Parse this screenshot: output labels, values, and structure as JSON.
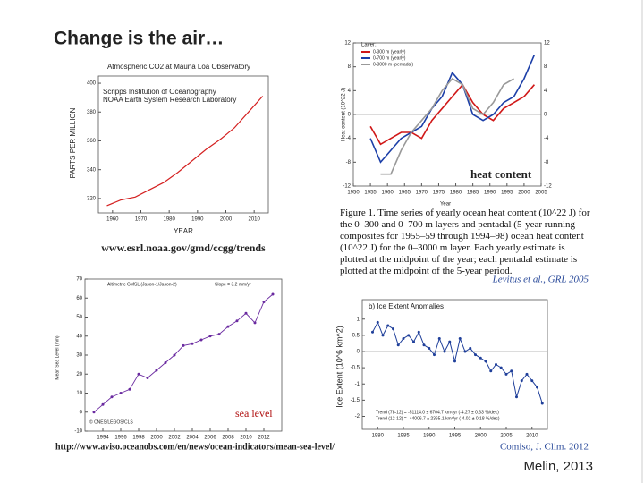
{
  "slide": {
    "title": "Change is the air…",
    "footer": "Melin, 2013"
  },
  "chart_data": [
    {
      "type": "line",
      "title": "Atmospheric CO2 at Mauna Loa Observatory",
      "subtitle": [
        "Scripps Institution of Oceanography",
        "NOAA Earth System Research Laboratory"
      ],
      "y_label": "PARTS PER MILLION",
      "x_label": "YEAR",
      "source": "www.esrl.noaa.gov/gmd/ccgg/trends",
      "x": [
        1958,
        1963,
        1968,
        1973,
        1978,
        1983,
        1988,
        1993,
        1998,
        2003,
        2008,
        2013
      ],
      "series": [
        {
          "name": "CO2",
          "color": "#d42020",
          "values": [
            315,
            319,
            321,
            326,
            331,
            338,
            346,
            354,
            361,
            369,
            380,
            391
          ]
        }
      ],
      "xlim": [
        1955,
        2015
      ],
      "xticks": [
        1960,
        1970,
        1980,
        1990,
        2000,
        2010
      ],
      "ylim": [
        310,
        405
      ],
      "yticks": [
        320,
        340,
        360,
        380,
        400
      ]
    },
    {
      "type": "line",
      "y_label": "Heat content (10^22 J)",
      "x_label": "Year",
      "legend_title": "Layer:",
      "annotation": "heat content",
      "caption": "Figure 1. Time series of yearly ocean heat content (10^22 J) for the 0–300 and 0–700 m layers and pentadal (5-year running composites for 1955–59 through 1994–98) ocean heat content (10^22 J) for the 0–3000 m layer. Each yearly estimate is plotted at the midpoint of the year; each pentadal estimate is plotted at the midpoint of the 5-year period.",
      "citation": "Levitus et al., GRL 2005",
      "x": [
        1955,
        1958,
        1961,
        1964,
        1967,
        1970,
        1973,
        1976,
        1979,
        1982,
        1985,
        1988,
        1991,
        1994,
        1997,
        2000,
        2003
      ],
      "series": [
        {
          "name": "0-300 m (yearly)",
          "color": "#d01818",
          "values": [
            -2,
            -5,
            -4,
            -3,
            -3,
            -4,
            -1,
            1,
            3,
            5,
            2,
            0,
            -1,
            1,
            2,
            3,
            5
          ]
        },
        {
          "name": "0-700 m (yearly)",
          "color": "#1c3fa8",
          "values": [
            -4,
            -8,
            -6,
            -4,
            -3,
            -2,
            1,
            3,
            7,
            5,
            0,
            -1,
            0,
            2,
            3,
            6,
            10
          ]
        },
        {
          "name": "0-3000 m (pentadal)",
          "color": "#999999",
          "values": [
            null,
            -10,
            -10,
            -6,
            -3,
            -1,
            1,
            4,
            6,
            5,
            1,
            0,
            2,
            5,
            6,
            null,
            null
          ]
        }
      ],
      "xlim": [
        1950,
        2005
      ],
      "xticks": [
        1950,
        1955,
        1960,
        1965,
        1970,
        1975,
        1980,
        1985,
        1990,
        1995,
        2000,
        2005
      ],
      "ylim": [
        -12,
        12
      ],
      "yticks": [
        -12,
        -8,
        -4,
        0,
        4,
        8,
        12
      ]
    },
    {
      "type": "line",
      "title": "Altimetric GMSL (Jason-1/Jason-2)",
      "subtitle": [
        "Slope = 3.2 mm/yr"
      ],
      "y_label": "Mean Sea Level (mm)",
      "annotation": "sea level",
      "credit": "© CNES/LEGOS/CLS",
      "source": "http://www.aviso.oceanobs.com/en/news/ocean-indicators/mean-sea-level/",
      "x": [
        1993,
        1994,
        1995,
        1996,
        1997,
        1998,
        1999,
        2000,
        2001,
        2002,
        2003,
        2004,
        2005,
        2006,
        2007,
        2008,
        2009,
        2010,
        2011,
        2012,
        2013
      ],
      "series": [
        {
          "name": "GMSL",
          "color": "#6a2aa0",
          "values": [
            0,
            4,
            8,
            10,
            12,
            20,
            18,
            22,
            26,
            30,
            35,
            36,
            38,
            40,
            41,
            45,
            48,
            52,
            47,
            58,
            62
          ]
        }
      ],
      "xlim": [
        1992,
        2014
      ],
      "xticks": [
        1994,
        1996,
        1998,
        2000,
        2002,
        2004,
        2006,
        2008,
        2010,
        2012
      ],
      "ylim": [
        -10,
        70
      ],
      "yticks": [
        -10,
        0,
        10,
        20,
        30,
        40,
        50,
        60,
        70
      ]
    },
    {
      "type": "line",
      "title": "b) Ice Extent Anomalies",
      "y_label": "Ice Extent (10^6 km^2)",
      "notes": [
        "Trend (78-12) = -51114.0 ± 6704.7 km²/yr (-4.27 ± 0.63 %/dec)",
        "Trend (12-12) = -44006.7 ± 2365.1 km²/yr (-4.02 ± 0.18 %/dec)"
      ],
      "citation": "Comiso, J. Clim. 2012",
      "x": [
        1979,
        1980,
        1981,
        1982,
        1983,
        1984,
        1985,
        1986,
        1987,
        1988,
        1989,
        1990,
        1991,
        1992,
        1993,
        1994,
        1995,
        1996,
        1997,
        1998,
        1999,
        2000,
        2001,
        2002,
        2003,
        2004,
        2005,
        2006,
        2007,
        2008,
        2009,
        2010,
        2011,
        2012
      ],
      "series": [
        {
          "name": "Ice extent anomaly",
          "color": "#1f3f9a",
          "values": [
            0.6,
            0.9,
            0.5,
            0.8,
            0.7,
            0.2,
            0.4,
            0.5,
            0.3,
            0.6,
            0.2,
            0.1,
            -0.1,
            0.4,
            0.0,
            0.3,
            -0.3,
            0.4,
            0.0,
            0.1,
            -0.1,
            -0.2,
            -0.3,
            -0.6,
            -0.4,
            -0.5,
            -0.7,
            -0.6,
            -1.4,
            -0.9,
            -0.7,
            -0.9,
            -1.1,
            -1.6
          ]
        }
      ],
      "xlim": [
        1977,
        2013
      ],
      "xticks": [
        1980,
        1985,
        1990,
        1995,
        2000,
        2005,
        2010
      ],
      "ylim": [
        -2.4,
        1.6
      ],
      "yticks": [
        -2,
        -1.5,
        -1,
        -0.5,
        0,
        0.5,
        1
      ]
    }
  ]
}
